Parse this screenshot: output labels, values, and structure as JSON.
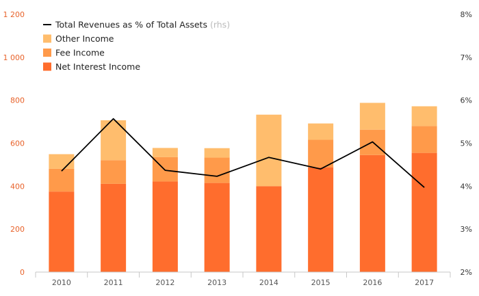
{
  "chart_data": {
    "type": "bar",
    "categories": [
      "2010",
      "2011",
      "2012",
      "2013",
      "2014",
      "2015",
      "2016",
      "2017"
    ],
    "series": [
      {
        "name": "Net Interest Income",
        "kind": "stacked-bar",
        "axis": "left",
        "color": "#ff6d2d",
        "values": [
          375,
          411,
          422,
          415,
          400,
          488,
          545,
          555
        ]
      },
      {
        "name": "Fee Income",
        "kind": "stacked-bar",
        "axis": "left",
        "color": "#ff9a4a",
        "values": [
          106,
          110,
          113,
          118,
          0,
          128,
          118,
          125
        ]
      },
      {
        "name": "Other Income",
        "kind": "stacked-bar",
        "axis": "left",
        "color": "#ffbd6d",
        "values": [
          68,
          186,
          43,
          44,
          333,
          76,
          125,
          92
        ]
      },
      {
        "name": "Total Revenues as % of Total Assets",
        "legend_suffix": "(rhs)",
        "kind": "line",
        "axis": "right",
        "color": "#000000",
        "values": [
          4.35,
          5.57,
          4.37,
          4.23,
          4.67,
          4.4,
          5.03,
          3.97
        ]
      }
    ],
    "left_axis": {
      "ylim": [
        0,
        1200
      ],
      "ticks": [
        0,
        200,
        400,
        600,
        800,
        1000,
        1200
      ],
      "tick_labels": [
        "0",
        "200",
        "400",
        "600",
        "800",
        "1 000",
        "1 200"
      ],
      "color": "#e8622a"
    },
    "right_axis": {
      "ylim": [
        2,
        8
      ],
      "ticks": [
        2,
        3,
        4,
        5,
        6,
        7,
        8
      ],
      "tick_labels": [
        "2%",
        "3%",
        "4%",
        "5%",
        "6%",
        "7%",
        "8%"
      ]
    },
    "grid": false,
    "legend_position": "top-left",
    "legend_order": [
      3,
      2,
      1,
      0
    ]
  }
}
